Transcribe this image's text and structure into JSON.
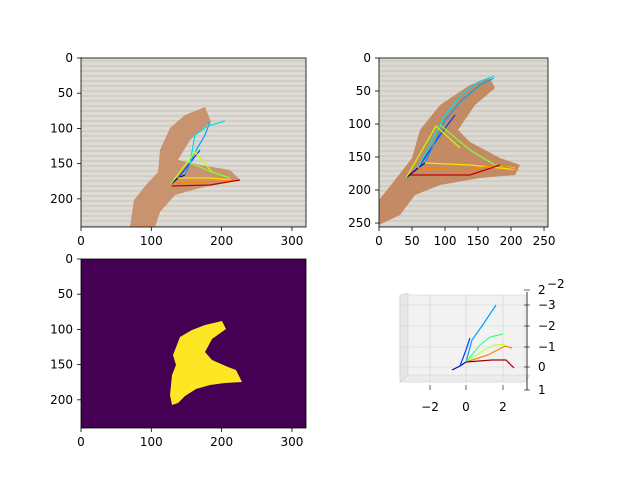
{
  "chart_data": [
    {
      "type": "image",
      "panel": "photo-keypoints-original",
      "xlim": [
        0,
        320
      ],
      "ylim": [
        240,
        0
      ],
      "xticks": [
        "0",
        "100",
        "200",
        "300"
      ],
      "yticks": [
        "0",
        "50",
        "100",
        "150",
        "200"
      ],
      "xtick_values": [
        0,
        100,
        200,
        300
      ],
      "ytick_values": [
        0,
        50,
        100,
        150,
        200
      ],
      "background": "#d9d6d0"
    },
    {
      "type": "image",
      "panel": "photo-keypoints-crop",
      "xlim": [
        0,
        256
      ],
      "ylim": [
        256,
        0
      ],
      "xticks": [
        "0",
        "50",
        "100",
        "150",
        "200",
        "250"
      ],
      "yticks": [
        "0",
        "50",
        "100",
        "150",
        "200",
        "250"
      ],
      "xtick_values": [
        0,
        50,
        100,
        150,
        200,
        250
      ],
      "ytick_values": [
        0,
        50,
        100,
        150,
        200,
        250
      ],
      "background": "#d9d6d0"
    },
    {
      "type": "heatmap",
      "panel": "segmentation-mask",
      "xlim": [
        0,
        320
      ],
      "ylim": [
        240,
        0
      ],
      "xticks": [
        "0",
        "100",
        "200",
        "300"
      ],
      "yticks": [
        "0",
        "50",
        "100",
        "150",
        "200"
      ],
      "xtick_values": [
        0,
        100,
        200,
        300
      ],
      "ytick_values": [
        0,
        50,
        100,
        150,
        200
      ],
      "background_color": "#440154",
      "mask_color": "#fde725"
    },
    {
      "type": "line3d",
      "panel": "keypoints-3d",
      "xticks": [
        "−2",
        "0",
        "2"
      ],
      "xtick_values": [
        -2,
        0,
        2
      ],
      "zticks": [
        "2",
        "−3",
        "−2",
        "−1",
        "0",
        "1"
      ],
      "extra_tick": "−2",
      "pane_color": "#f2f2f2"
    }
  ]
}
